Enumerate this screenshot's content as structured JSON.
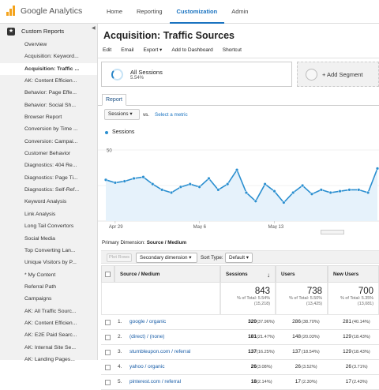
{
  "app": {
    "logo_text": "Google Analytics"
  },
  "nav": [
    "Home",
    "Reporting",
    "Customization",
    "Admin"
  ],
  "sidebar": {
    "header": "Custom Reports",
    "items": [
      "Overview",
      "Acquisition: Keyword...",
      "Acquisition: Traffic ...",
      "AK: Content Efficien...",
      "Behavior: Page Effe...",
      "Behavior: Social Sh...",
      "Browser Report",
      "Conversion by Time ...",
      "Conversion: Campai...",
      "Customer Behavior",
      "Diagnostics: 404 Re...",
      "Diagnostics: Page Ti...",
      "Diagnostics: Self-Ref...",
      "Keyword Analysis",
      "Link Analysis",
      "Long Tail Convertors",
      "Social Media",
      "Top Converting Lan...",
      "Unique Visitors by P...",
      "* My Content",
      "Referral Path",
      "Campaigns",
      "AK: All Traffic Sourc...",
      "AK: Content Efficien...",
      "AK: E2E Paid Searc...",
      "AK: Internal Site Se...",
      "AK: Landing Pages..."
    ]
  },
  "report": {
    "title": "Acquisition: Traffic Sources",
    "toolbar": [
      "Edit",
      "Email",
      "Export ▾",
      "Add to Dashboard",
      "Shortcut"
    ]
  },
  "segment": {
    "name": "All Sessions",
    "pct": "5.54%",
    "add_label": "+ Add Segment"
  },
  "tab": "Report",
  "metric": {
    "selected": "Sessions",
    "vs": "vs.",
    "select_label": "Select a metric",
    "legend": "Sessions"
  },
  "chart_data": {
    "type": "line",
    "series": [
      {
        "name": "Sessions",
        "values": [
          29,
          27,
          28,
          30,
          31,
          26,
          22,
          20,
          24,
          26,
          24,
          30,
          22,
          26,
          36,
          20,
          14,
          26,
          21,
          13,
          20,
          25,
          19,
          22,
          20,
          21,
          22,
          22,
          20,
          37
        ]
      }
    ],
    "yticks": [
      50,
      25
    ],
    "ylim": [
      0,
      50
    ],
    "xticks": [
      {
        "label": "Apr 29",
        "index": 1
      },
      {
        "label": "May 6",
        "index": 10
      },
      {
        "label": "May 13",
        "index": 18
      }
    ],
    "color": "#2b8fd0"
  },
  "primary_dimension": {
    "label": "Primary Dimension:",
    "value": "Source / Medium"
  },
  "controls": {
    "plot_rows": "Plot Rows",
    "secondary": "Secondary dimension ▾",
    "sort_label": "Sort Type:",
    "sort_value": "Default ▾"
  },
  "table": {
    "headers": [
      "Source / Medium",
      "Sessions",
      "Users",
      "New Users"
    ],
    "sort_arrow": "↓",
    "totals": [
      {
        "big": "843",
        "sub1": "% of Total: 5.54%",
        "sub2": "(15,218)"
      },
      {
        "big": "738",
        "sub1": "% of Total: 5.50%",
        "sub2": "(13,425)"
      },
      {
        "big": "700",
        "sub1": "% of Total: 5.35%",
        "sub2": "(13,081)"
      }
    ],
    "rows": [
      {
        "n": "1.",
        "source": "google / organic",
        "sessions": "320",
        "sessions_pct": "(37.96%)",
        "users": "286",
        "users_pct": "(38.70%)",
        "new": "281",
        "new_pct": "(40.14%)"
      },
      {
        "n": "2.",
        "source": "(direct) / (none)",
        "sessions": "181",
        "sessions_pct": "(21.47%)",
        "users": "148",
        "users_pct": "(20.03%)",
        "new": "129",
        "new_pct": "(18.43%)"
      },
      {
        "n": "3.",
        "source": "stumbleupon.com / referral",
        "sessions": "137",
        "sessions_pct": "(16.25%)",
        "users": "137",
        "users_pct": "(18.54%)",
        "new": "129",
        "new_pct": "(18.43%)"
      },
      {
        "n": "4.",
        "source": "yahoo / organic",
        "sessions": "26",
        "sessions_pct": "(3.08%)",
        "users": "26",
        "users_pct": "(3.52%)",
        "new": "26",
        "new_pct": "(3.71%)"
      },
      {
        "n": "5.",
        "source": "pinterest.com / referral",
        "sessions": "18",
        "sessions_pct": "(2.14%)",
        "users": "17",
        "users_pct": "(2.30%)",
        "new": "17",
        "new_pct": "(2.43%)"
      }
    ]
  }
}
